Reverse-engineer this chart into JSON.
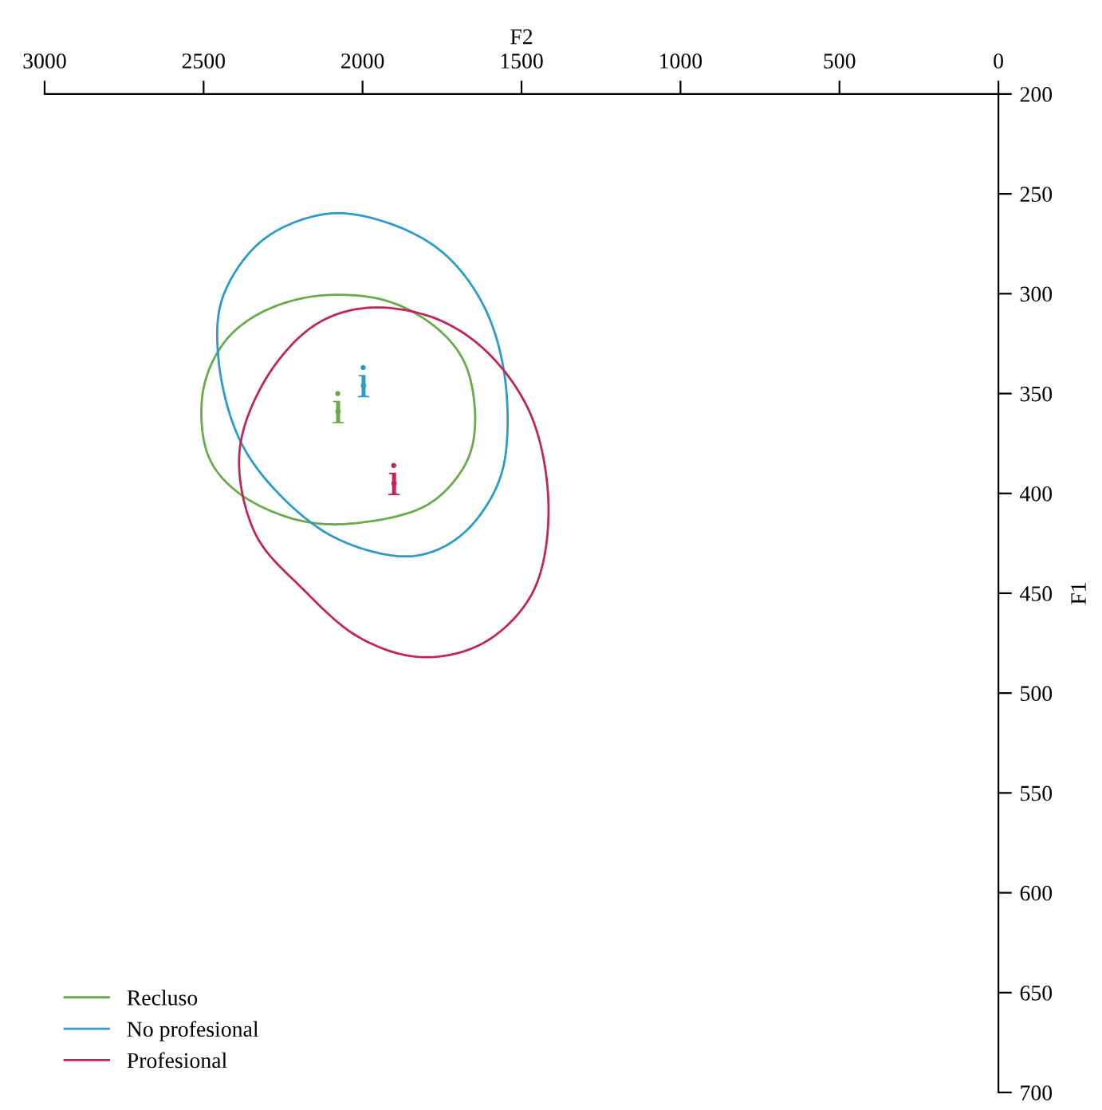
{
  "chart_data": {
    "type": "scatter",
    "xlabel": "F2",
    "ylabel": "F1",
    "xlim": [
      3000,
      0
    ],
    "xticks": [
      3000,
      2500,
      2000,
      1500,
      1000,
      500,
      0
    ],
    "ylim": [
      700,
      200
    ],
    "yticks": [
      200,
      250,
      300,
      350,
      400,
      450,
      500,
      550,
      600,
      650,
      700
    ],
    "grid": false,
    "legend": "bottom left",
    "marker": "circle",
    "series": [
      {
        "name": "Recluso",
        "color": "#6aaa4a",
        "x": [
          2077
        ],
        "values": [
          359
        ],
        "value_labels": [
          "i"
        ]
      },
      {
        "name": "No profesional",
        "color": "#2a9ccc",
        "x": [
          1997
        ],
        "values": [
          346
        ],
        "value_labels": [
          "i"
        ]
      },
      {
        "name": "Profesional",
        "color": "#c2245a",
        "x": [
          1901
        ],
        "values": [
          395
        ],
        "value_labels": [
          "i"
        ]
      }
    ]
  }
}
